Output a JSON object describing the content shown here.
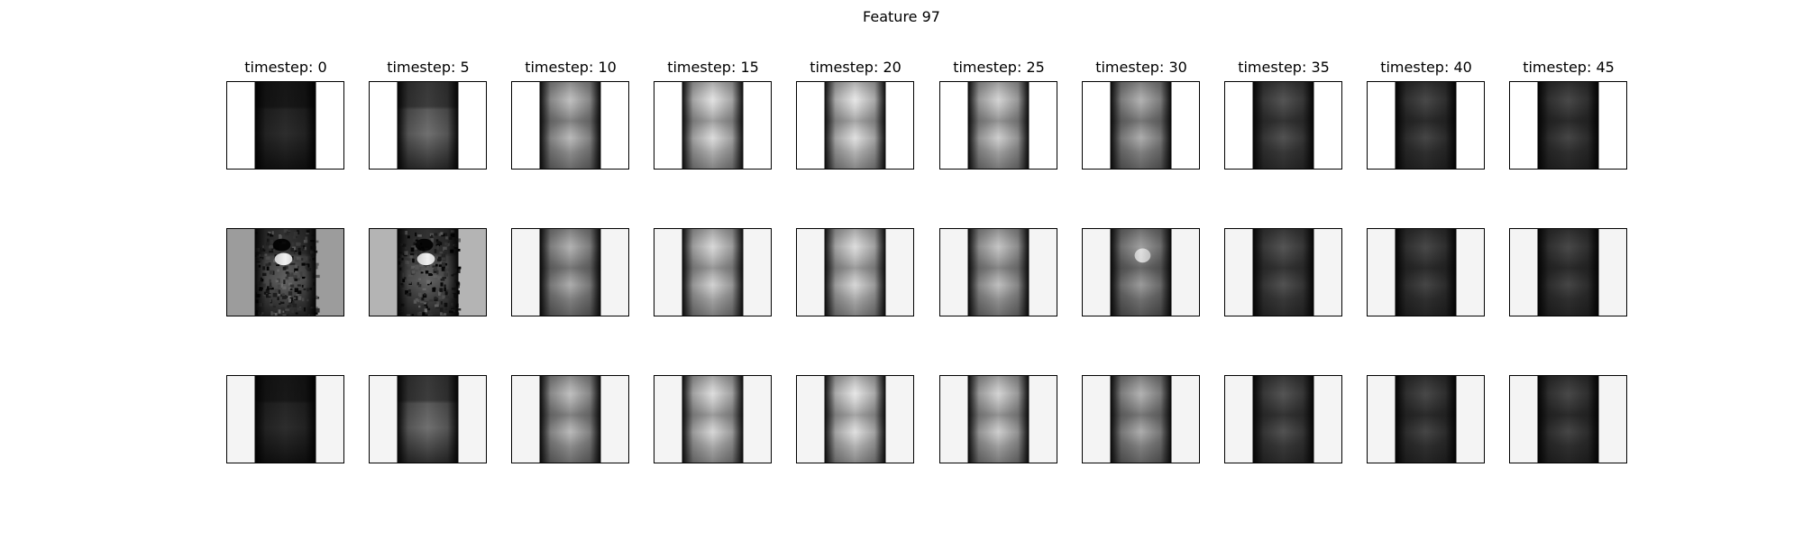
{
  "figure": {
    "title": "Feature 97",
    "columns": [
      {
        "label": "timestep: 0",
        "rows": [
          {
            "bg": "#ffffff",
            "style": "smooth",
            "tone": 0.16
          },
          {
            "bg": "#9c9c9c",
            "style": "noisy",
            "tone": 0.35
          },
          {
            "bg": "#f4f4f4",
            "style": "smooth",
            "tone": 0.16
          }
        ]
      },
      {
        "label": "timestep: 5",
        "rows": [
          {
            "bg": "#ffffff",
            "style": "smooth",
            "tone": 0.4
          },
          {
            "bg": "#b4b4b4",
            "style": "noisy",
            "tone": 0.35
          },
          {
            "bg": "#f4f4f4",
            "style": "smooth",
            "tone": 0.4
          }
        ]
      },
      {
        "label": "timestep: 10",
        "rows": [
          {
            "bg": "#ffffff",
            "style": "smooth",
            "tone": 0.6
          },
          {
            "bg": "#f4f4f4",
            "style": "smooth",
            "tone": 0.55
          },
          {
            "bg": "#f4f4f4",
            "style": "smooth",
            "tone": 0.6
          }
        ]
      },
      {
        "label": "timestep: 15",
        "rows": [
          {
            "bg": "#ffffff",
            "style": "smooth",
            "tone": 0.74
          },
          {
            "bg": "#f4f4f4",
            "style": "smooth",
            "tone": 0.7
          },
          {
            "bg": "#f4f4f4",
            "style": "smooth",
            "tone": 0.72
          }
        ]
      },
      {
        "label": "timestep: 20",
        "rows": [
          {
            "bg": "#ffffff",
            "style": "smooth",
            "tone": 0.76
          },
          {
            "bg": "#f4f4f4",
            "style": "smooth",
            "tone": 0.72
          },
          {
            "bg": "#f4f4f4",
            "style": "smooth",
            "tone": 0.76
          }
        ]
      },
      {
        "label": "timestep: 25",
        "rows": [
          {
            "bg": "#ffffff",
            "style": "smooth",
            "tone": 0.68
          },
          {
            "bg": "#f4f4f4",
            "style": "smooth",
            "tone": 0.62
          },
          {
            "bg": "#f4f4f4",
            "style": "smooth",
            "tone": 0.68
          }
        ]
      },
      {
        "label": "timestep: 30",
        "rows": [
          {
            "bg": "#ffffff",
            "style": "smooth",
            "tone": 0.55
          },
          {
            "bg": "#f4f4f4",
            "style": "blob",
            "tone": 0.48
          },
          {
            "bg": "#f4f4f4",
            "style": "smooth",
            "tone": 0.55
          }
        ]
      },
      {
        "label": "timestep: 35",
        "rows": [
          {
            "bg": "#ffffff",
            "style": "smooth",
            "tone": 0.24
          },
          {
            "bg": "#f4f4f4",
            "style": "smooth",
            "tone": 0.24
          },
          {
            "bg": "#f4f4f4",
            "style": "smooth",
            "tone": 0.24
          }
        ]
      },
      {
        "label": "timestep: 40",
        "rows": [
          {
            "bg": "#ffffff",
            "style": "smooth",
            "tone": 0.2
          },
          {
            "bg": "#f4f4f4",
            "style": "smooth",
            "tone": 0.2
          },
          {
            "bg": "#f4f4f4",
            "style": "smooth",
            "tone": 0.2
          }
        ]
      },
      {
        "label": "timestep: 45",
        "rows": [
          {
            "bg": "#ffffff",
            "style": "smooth",
            "tone": 0.2
          },
          {
            "bg": "#f4f4f4",
            "style": "smooth",
            "tone": 0.2
          },
          {
            "bg": "#f4f4f4",
            "style": "smooth",
            "tone": 0.2
          }
        ]
      }
    ]
  }
}
